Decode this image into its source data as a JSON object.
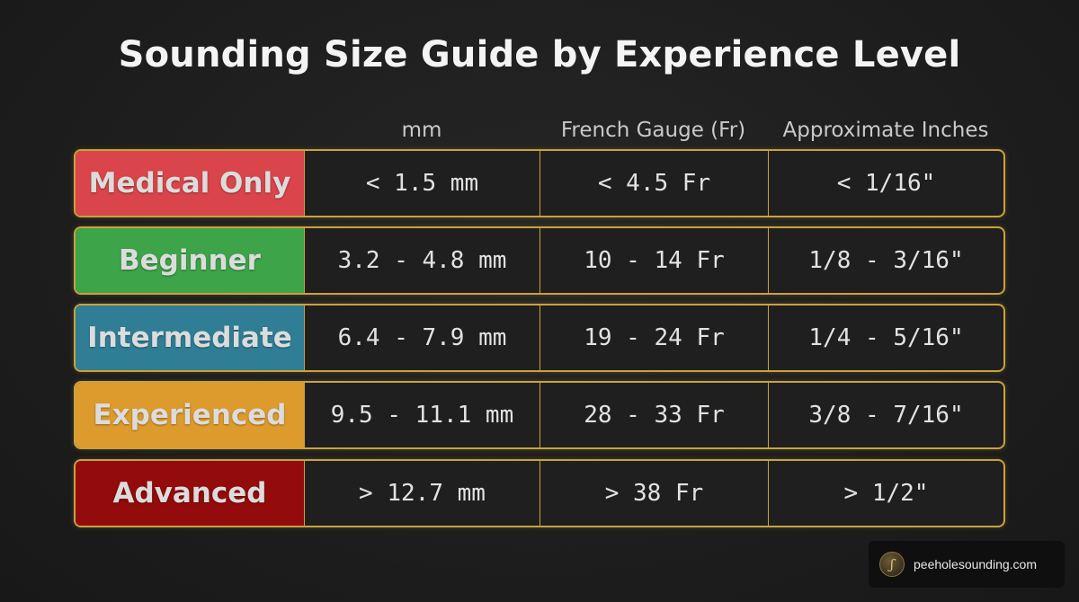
{
  "title": "Sounding Size Guide by Experience Level",
  "columns": {
    "mm": "mm",
    "french": "French Gauge (Fr)",
    "inches": "Approximate Inches"
  },
  "rows": [
    {
      "level": "Medical Only",
      "color": "#d9454a",
      "mm": "< 1.5 mm",
      "french": "< 4.5 Fr",
      "inches": "< 1/16\""
    },
    {
      "level": "Beginner",
      "color": "#3da449",
      "mm": "3.2 - 4.8 mm",
      "french": "10 - 14 Fr",
      "inches": "1/8 - 3/16\""
    },
    {
      "level": "Intermediate",
      "color": "#2f7e96",
      "mm": "6.4 - 7.9 mm",
      "french": "19 - 24 Fr",
      "inches": "1/4 - 5/16\""
    },
    {
      "level": "Experienced",
      "color": "#dd9b2d",
      "mm": "9.5 - 11.1 mm",
      "french": "28 - 33 Fr",
      "inches": "3/8 - 7/16\""
    },
    {
      "level": "Advanced",
      "color": "#940b0b",
      "mm": "> 12.7 mm",
      "french": "> 38 Fr",
      "inches": "> 1/2\""
    }
  ],
  "badge": {
    "icon": "logo-icon",
    "site": "peeholesounding.com"
  }
}
